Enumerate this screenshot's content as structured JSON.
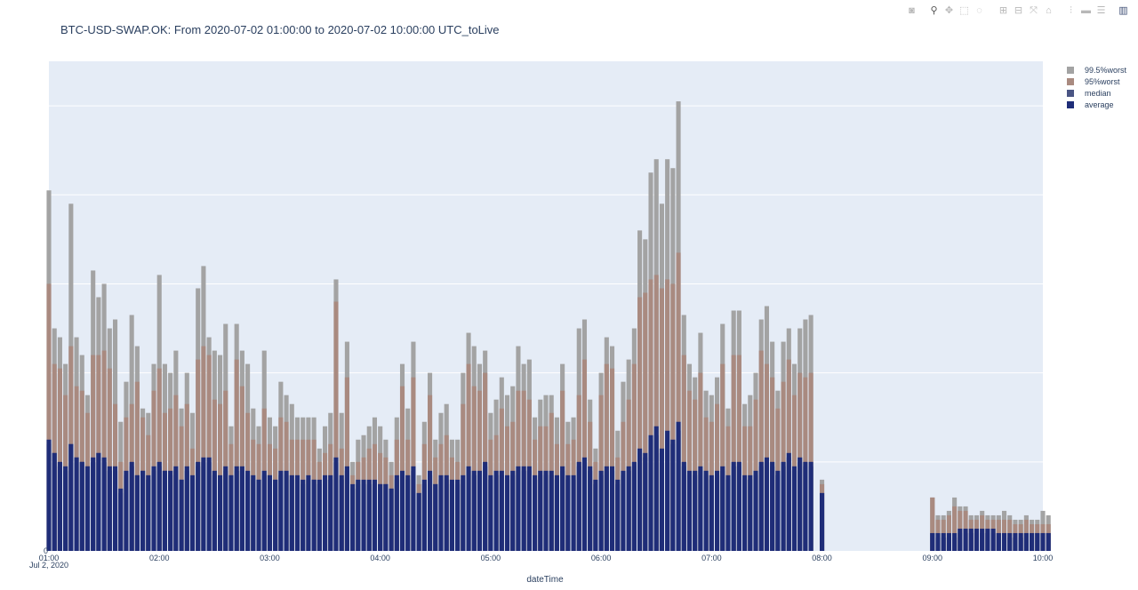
{
  "title": "BTC-USD-SWAP.OK: From 2020-07-02 01:00:00 to 2020-07-02 10:00:00 UTC_toLive",
  "modebar": [
    "camera-icon",
    "zoom-icon",
    "pan-icon",
    "box-select-icon",
    "lasso-icon",
    "zoom-in-icon",
    "zoom-out-icon",
    "autoscale-icon",
    "home-icon",
    "spike-lines-icon",
    "hover-closest-icon",
    "hover-compare-icon",
    "plotly-logo-icon"
  ],
  "chart_data": {
    "type": "bar",
    "barmode": "overlay",
    "xlabel": "dateTime",
    "ylabel": "",
    "x_ticks": [
      "01:00",
      "02:00",
      "03:00",
      "04:00",
      "05:00",
      "06:00",
      "07:00",
      "08:00",
      "09:00",
      "10:00"
    ],
    "x_tick_sub": "Jul 2, 2020",
    "y_ticks": [
      "0"
    ],
    "xlim_hours": [
      1,
      10
    ],
    "ylim": [
      0,
      110
    ],
    "grid": true,
    "legend_position": "top-right",
    "colors": {
      "p995": "#a3a3a3",
      "p95": "#a98a80",
      "median": "#4a5584",
      "average": "#1f2d78",
      "plot_bg": "#e5ecf6",
      "grid": "#ffffff"
    },
    "series": [
      {
        "name": "99.5%worst",
        "key": "p995"
      },
      {
        "name": "95%worst",
        "key": "p95"
      },
      {
        "name": "median",
        "key": "median"
      },
      {
        "name": "average",
        "key": "average"
      }
    ],
    "segments": [
      {
        "x_start": 1.0,
        "step": 0.05,
        "p995": [
          81,
          50,
          48,
          42,
          78,
          48,
          44,
          35,
          63,
          57,
          60,
          50,
          52,
          29,
          38,
          53,
          46,
          32,
          31,
          42,
          62,
          42,
          40,
          45,
          32,
          40,
          31,
          59,
          64,
          48,
          45,
          44,
          51,
          28,
          51,
          45,
          42,
          32,
          28,
          45,
          30,
          28,
          38,
          35,
          33,
          30,
          30,
          30,
          30,
          23,
          28,
          31,
          61,
          31,
          47,
          20,
          25,
          26,
          28,
          30,
          28,
          25,
          20,
          30,
          42,
          32,
          47,
          17,
          29,
          40,
          25,
          31,
          33,
          25,
          25,
          40,
          49,
          46,
          42,
          45,
          31,
          34,
          39,
          35,
          37,
          46,
          42,
          43,
          30,
          34,
          35,
          35,
          30,
          42,
          29,
          30,
          50,
          52,
          34,
          23,
          40,
          48,
          46,
          27,
          38,
          43,
          50,
          72,
          70,
          85,
          88,
          78,
          88,
          86,
          101,
          53,
          42,
          39,
          49,
          36,
          35,
          39,
          51,
          32,
          54,
          54,
          33,
          35,
          40,
          52,
          55,
          47,
          36,
          47,
          50,
          42,
          50,
          52,
          53
        ],
        "p95": [
          60,
          42,
          41,
          35,
          46,
          37,
          36,
          31,
          44,
          44,
          45,
          41,
          33,
          20,
          30,
          33,
          38,
          30,
          26,
          36,
          41,
          31,
          32,
          35,
          28,
          33,
          23,
          43,
          46,
          44,
          34,
          33,
          36,
          24,
          43,
          37,
          31,
          25,
          24,
          32,
          24,
          23,
          30,
          29,
          25,
          25,
          25,
          25,
          25,
          20,
          22,
          24,
          56,
          23,
          39,
          17,
          20,
          21,
          23,
          24,
          22,
          21,
          17,
          25,
          37,
          25,
          39,
          15,
          24,
          35,
          21,
          24,
          26,
          21,
          20,
          33,
          42,
          37,
          36,
          40,
          25,
          26,
          32,
          28,
          29,
          36,
          36,
          34,
          25,
          28,
          28,
          31,
          24,
          36,
          24,
          25,
          35,
          43,
          29,
          20,
          35,
          42,
          41,
          21,
          29,
          34,
          42,
          57,
          58,
          61,
          62,
          59,
          61,
          60,
          67,
          44,
          36,
          34,
          40,
          30,
          29,
          33,
          42,
          28,
          44,
          44,
          28,
          28,
          34,
          45,
          42,
          39,
          32,
          38,
          43,
          35,
          40,
          39,
          40
        ],
        "median": [
          24,
          22,
          19,
          18,
          24,
          21,
          20,
          19,
          20,
          22,
          20,
          18,
          18,
          13,
          17,
          19,
          17,
          18,
          16,
          18,
          19,
          18,
          17,
          18,
          16,
          18,
          16,
          19,
          20,
          20,
          17,
          16,
          18,
          17,
          18,
          18,
          17,
          16,
          16,
          17,
          17,
          16,
          17,
          17,
          16,
          16,
          15,
          16,
          16,
          15,
          16,
          16,
          20,
          16,
          18,
          14,
          15,
          15,
          15,
          15,
          15,
          15,
          14,
          16,
          17,
          16,
          18,
          13,
          15,
          17,
          15,
          16,
          16,
          15,
          15,
          16,
          18,
          17,
          17,
          19,
          16,
          17,
          17,
          16,
          17,
          18,
          18,
          18,
          16,
          17,
          17,
          17,
          16,
          18,
          16,
          16,
          19,
          20,
          18,
          15,
          17,
          18,
          18,
          15,
          17,
          18,
          19,
          22,
          21,
          25,
          26,
          22,
          25,
          24,
          27,
          19,
          17,
          17,
          18,
          17,
          16,
          17,
          18,
          16,
          19,
          19,
          16,
          16,
          17,
          19,
          20,
          19,
          17,
          19,
          21,
          18,
          20,
          19,
          19
        ],
        "average": [
          25,
          22,
          20,
          19,
          24,
          21,
          20,
          19,
          21,
          22,
          21,
          19,
          19,
          14,
          18,
          20,
          17,
          18,
          17,
          19,
          20,
          18,
          18,
          19,
          16,
          19,
          17,
          20,
          21,
          21,
          18,
          17,
          19,
          17,
          19,
          19,
          18,
          17,
          16,
          18,
          17,
          16,
          18,
          18,
          17,
          17,
          16,
          17,
          16,
          16,
          17,
          17,
          21,
          17,
          19,
          15,
          16,
          16,
          16,
          16,
          15,
          15,
          14,
          17,
          18,
          17,
          19,
          13,
          16,
          18,
          15,
          17,
          17,
          16,
          16,
          17,
          19,
          18,
          18,
          20,
          17,
          18,
          18,
          17,
          18,
          19,
          19,
          19,
          17,
          18,
          18,
          18,
          17,
          19,
          17,
          17,
          20,
          21,
          19,
          16,
          18,
          19,
          19,
          16,
          18,
          19,
          20,
          23,
          22,
          26,
          28,
          23,
          27,
          25,
          29,
          20,
          18,
          18,
          19,
          18,
          17,
          18,
          19,
          17,
          20,
          20,
          17,
          17,
          18,
          20,
          21,
          20,
          18,
          20,
          22,
          19,
          21,
          20,
          20
        ]
      },
      {
        "x_start": 8.0,
        "step": 0.05,
        "p995": [
          16
        ],
        "p95": [
          15
        ],
        "median": [
          13
        ],
        "average": [
          13
        ]
      },
      {
        "x_start": 9.0,
        "step": 0.05,
        "p995": [
          12,
          8,
          8,
          9,
          12,
          10,
          10,
          8,
          8,
          9,
          8,
          8,
          8,
          9,
          8,
          7,
          7,
          8,
          7,
          7,
          9,
          8
        ],
        "p95": [
          12,
          7,
          7,
          8,
          10,
          9,
          9,
          7,
          7,
          8,
          7,
          7,
          7,
          7,
          7,
          6,
          6,
          7,
          6,
          6,
          6,
          6
        ],
        "median": [
          4,
          3,
          3,
          3,
          3,
          4,
          4,
          4,
          4,
          4,
          4,
          4,
          4,
          4,
          3,
          3,
          3,
          4,
          4,
          4,
          4,
          4
        ],
        "average": [
          4,
          4,
          4,
          4,
          4,
          5,
          5,
          5,
          5,
          5,
          5,
          5,
          4,
          4,
          4,
          4,
          4,
          4,
          4,
          4,
          4,
          4
        ]
      }
    ]
  }
}
